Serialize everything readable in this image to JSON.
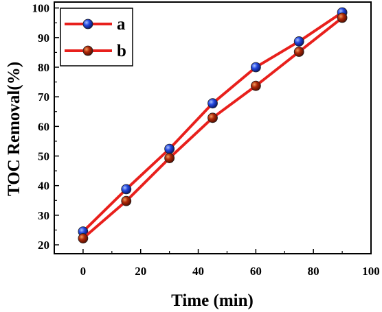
{
  "chart_data": {
    "type": "line",
    "xlabel": "Time (min)",
    "ylabel": "TOC Removal(%)",
    "xlim": [
      -10,
      100
    ],
    "ylim": [
      17,
      102
    ],
    "x_ticks": [
      0,
      20,
      40,
      60,
      80,
      100
    ],
    "y_ticks": [
      20,
      30,
      40,
      50,
      60,
      70,
      80,
      90,
      100
    ],
    "grid": false,
    "legend_position": "top-left",
    "x": [
      0,
      15,
      30,
      45,
      60,
      75,
      90
    ],
    "series": [
      {
        "name": "a",
        "values": [
          24.5,
          38.8,
          52.4,
          67.8,
          80.0,
          88.7,
          98.5
        ],
        "line_color": "#e8201c",
        "marker_color": "#1f3fd8"
      },
      {
        "name": "b",
        "values": [
          22.2,
          34.8,
          49.3,
          62.9,
          73.7,
          85.2,
          96.7
        ],
        "line_color": "#e8201c",
        "marker_color": "#b02808"
      }
    ]
  }
}
